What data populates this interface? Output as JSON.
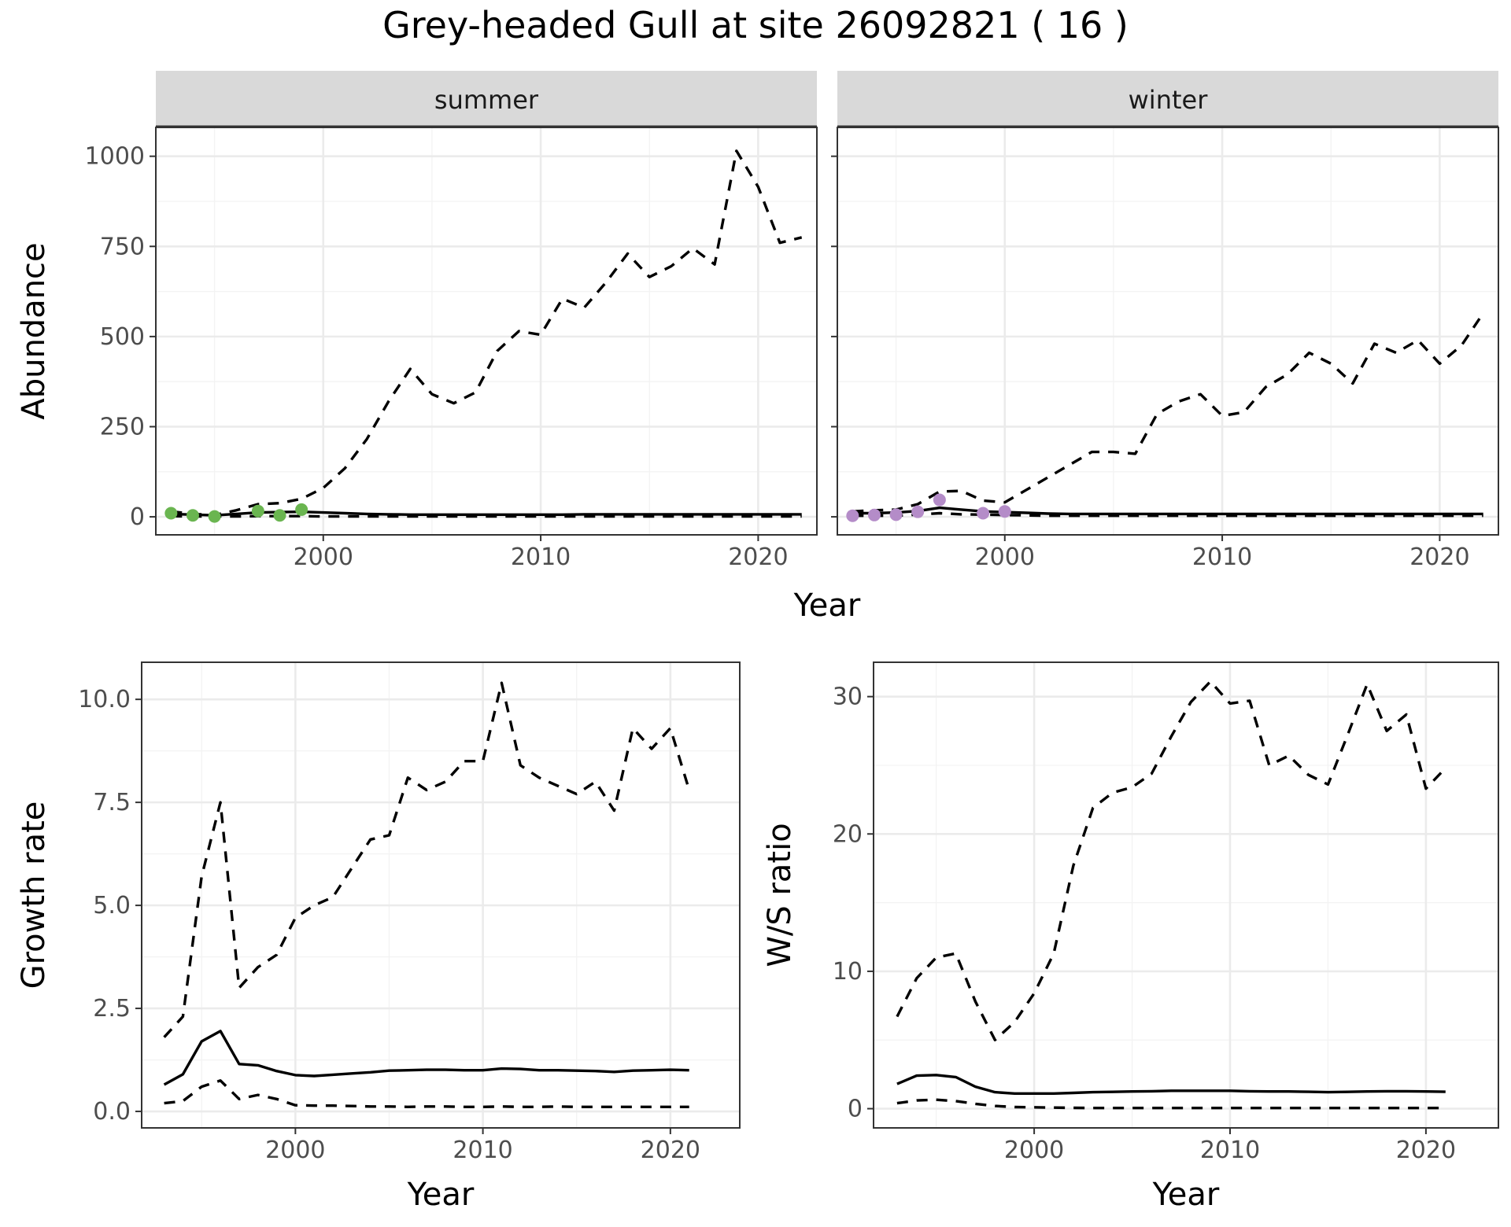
{
  "title": "Grey-headed Gull at site 26092821 ( 16 )",
  "colors": {
    "summer_points": "#6ab550",
    "winter_points": "#b48cc8",
    "strip_bg": "#d9d9d9"
  },
  "chart_data": [
    {
      "id": "abundance",
      "type": "line",
      "title": "",
      "xlabel": "Year",
      "ylabel": "Abundance",
      "xlim": [
        1992.3,
        2022.7
      ],
      "ylim": [
        -50,
        1080
      ],
      "xticks": [
        2000,
        2010,
        2020
      ],
      "xtick_labels": [
        "2000",
        "2010",
        "2020"
      ],
      "yticks": [
        0,
        250,
        500,
        750,
        1000
      ],
      "ytick_labels": [
        "0",
        "250",
        "500",
        "750",
        "1000"
      ],
      "grid": true,
      "legend": "none",
      "facets": [
        {
          "name": "summer",
          "point_color": "#6ab550",
          "points": {
            "x": [
              1993,
              1994,
              1995,
              1997,
              1998,
              1999
            ],
            "y": [
              10,
              4,
              1,
              16,
              4,
              20
            ]
          },
          "series": [
            {
              "style": "solid",
              "x": [
                1993,
                1994,
                1995,
                1996,
                1997,
                1998,
                1999,
                2000,
                2001,
                2002,
                2003,
                2004,
                2005,
                2006,
                2007,
                2008,
                2009,
                2010,
                2011,
                2012,
                2013,
                2014,
                2015,
                2016,
                2017,
                2018,
                2019,
                2020,
                2021,
                2022
              ],
              "y": [
                8,
                6,
                4,
                8,
                12,
                13,
                14,
                12,
                10,
                8,
                7,
                6,
                6,
                6,
                6,
                6,
                6,
                6,
                6,
                7,
                7,
                7,
                7,
                7,
                7,
                7,
                7,
                7,
                7,
                7
              ]
            },
            {
              "style": "dashed",
              "x": [
                1993,
                1994,
                1995,
                1996,
                1997,
                1998,
                1999,
                2000,
                2001,
                2002,
                2003,
                2004,
                2005,
                2006,
                2007,
                2008,
                2009,
                2010,
                2011,
                2012,
                2013,
                2014,
                2015,
                2016,
                2017,
                2018,
                2019,
                2020,
                2021,
                2022
              ],
              "y": [
                15,
                8,
                5,
                18,
                35,
                38,
                50,
                80,
                135,
                215,
                320,
                410,
                340,
                315,
                345,
                460,
                515,
                505,
                605,
                580,
                650,
                730,
                665,
                695,
                745,
                700,
                1015,
                915,
                760,
                775
              ]
            },
            {
              "style": "dashed",
              "x": [
                1993,
                1994,
                1995,
                1996,
                1997,
                1998,
                1999,
                2000,
                2001,
                2002,
                2003,
                2004,
                2005,
                2006,
                2007,
                2008,
                2009,
                2010,
                2011,
                2012,
                2013,
                2014,
                2015,
                2016,
                2017,
                2018,
                2019,
                2020,
                2021,
                2022
              ],
              "y": [
                2,
                1,
                1,
                1,
                2,
                2,
                2,
                1,
                1,
                1,
                1,
                1,
                1,
                1,
                1,
                1,
                1,
                1,
                1,
                1,
                1,
                1,
                1,
                1,
                1,
                1,
                1,
                1,
                1,
                1
              ]
            }
          ]
        },
        {
          "name": "winter",
          "point_color": "#b48cc8",
          "points": {
            "x": [
              1993,
              1994,
              1995,
              1996,
              1997,
              1999,
              2000
            ],
            "y": [
              3,
              5,
              6,
              14,
              47,
              10,
              15
            ]
          },
          "series": [
            {
              "style": "solid",
              "x": [
                1993,
                1994,
                1995,
                1996,
                1997,
                1998,
                1999,
                2000,
                2001,
                2002,
                2003,
                2004,
                2005,
                2006,
                2007,
                2008,
                2009,
                2010,
                2011,
                2012,
                2013,
                2014,
                2015,
                2016,
                2017,
                2018,
                2019,
                2020,
                2021,
                2022
              ],
              "y": [
                10,
                10,
                12,
                16,
                25,
                20,
                15,
                13,
                11,
                9,
                8,
                8,
                8,
                8,
                8,
                8,
                8,
                8,
                8,
                8,
                8,
                8,
                8,
                8,
                8,
                8,
                8,
                8,
                8,
                8
              ]
            },
            {
              "style": "dashed",
              "x": [
                1993,
                1994,
                1995,
                1996,
                1997,
                1998,
                1999,
                2000,
                2001,
                2002,
                2003,
                2004,
                2005,
                2006,
                2007,
                2008,
                2009,
                2010,
                2011,
                2012,
                2013,
                2014,
                2015,
                2016,
                2017,
                2018,
                2019,
                2020,
                2021,
                2022
              ],
              "y": [
                15,
                18,
                20,
                35,
                70,
                72,
                45,
                40,
                75,
                110,
                145,
                180,
                180,
                175,
                285,
                320,
                340,
                280,
                290,
                360,
                395,
                455,
                425,
                370,
                480,
                455,
                490,
                425,
                475,
                565
              ]
            },
            {
              "style": "dashed",
              "x": [
                1993,
                1994,
                1995,
                1996,
                1997,
                1998,
                1999,
                2000,
                2001,
                2002,
                2003,
                2004,
                2005,
                2006,
                2007,
                2008,
                2009,
                2010,
                2011,
                2012,
                2013,
                2014,
                2015,
                2016,
                2017,
                2018,
                2019,
                2020,
                2021,
                2022
              ],
              "y": [
                3,
                3,
                3,
                6,
                10,
                7,
                6,
                5,
                4,
                3,
                3,
                3,
                3,
                3,
                3,
                3,
                3,
                3,
                3,
                3,
                3,
                3,
                3,
                3,
                3,
                3,
                3,
                3,
                3,
                3
              ]
            }
          ]
        }
      ]
    },
    {
      "id": "growth",
      "type": "line",
      "title": "",
      "xlabel": "Year",
      "ylabel": "Growth rate",
      "xlim": [
        1991.8,
        2023.7
      ],
      "ylim": [
        -0.4,
        10.9
      ],
      "xticks": [
        2000,
        2010,
        2020
      ],
      "xtick_labels": [
        "2000",
        "2010",
        "2020"
      ],
      "yticks": [
        0,
        2.5,
        5,
        7.5,
        10
      ],
      "ytick_labels": [
        "0.0",
        "2.5",
        "5.0",
        "7.5",
        "10.0"
      ],
      "grid": true,
      "legend": "none",
      "series": [
        {
          "style": "solid",
          "x": [
            1993,
            1994,
            1995,
            1996,
            1997,
            1998,
            1999,
            2000,
            2001,
            2002,
            2003,
            2004,
            2005,
            2006,
            2007,
            2008,
            2009,
            2010,
            2011,
            2012,
            2013,
            2014,
            2015,
            2016,
            2017,
            2018,
            2019,
            2020,
            2021
          ],
          "y": [
            0.65,
            0.9,
            1.7,
            1.95,
            1.15,
            1.12,
            0.98,
            0.88,
            0.86,
            0.89,
            0.92,
            0.95,
            0.99,
            1.0,
            1.01,
            1.01,
            1.0,
            1.0,
            1.04,
            1.03,
            1.0,
            1.0,
            0.99,
            0.98,
            0.96,
            0.99,
            1.0,
            1.01,
            1.0
          ]
        },
        {
          "style": "dashed",
          "x": [
            1993,
            1994,
            1995,
            1996,
            1997,
            1998,
            1999,
            2000,
            2001,
            2002,
            2003,
            2004,
            2005,
            2006,
            2007,
            2008,
            2009,
            2010,
            2011,
            2012,
            2013,
            2014,
            2015,
            2016,
            2017,
            2018,
            2019,
            2020,
            2021
          ],
          "y": [
            1.8,
            2.3,
            5.7,
            7.5,
            3.0,
            3.5,
            3.8,
            4.7,
            5.0,
            5.2,
            5.9,
            6.6,
            6.7,
            8.1,
            7.8,
            8.0,
            8.5,
            8.5,
            10.4,
            8.4,
            8.1,
            7.9,
            7.7,
            8.0,
            7.3,
            9.3,
            8.8,
            9.3,
            7.8
          ]
        },
        {
          "style": "dashed",
          "x": [
            1993,
            1994,
            1995,
            1996,
            1997,
            1998,
            1999,
            2000,
            2001,
            2002,
            2003,
            2004,
            2005,
            2006,
            2007,
            2008,
            2009,
            2010,
            2011,
            2012,
            2013,
            2014,
            2015,
            2016,
            2017,
            2018,
            2019,
            2020,
            2021
          ],
          "y": [
            0.2,
            0.25,
            0.6,
            0.75,
            0.3,
            0.4,
            0.3,
            0.15,
            0.14,
            0.14,
            0.13,
            0.12,
            0.12,
            0.11,
            0.12,
            0.12,
            0.11,
            0.11,
            0.12,
            0.11,
            0.11,
            0.12,
            0.11,
            0.11,
            0.11,
            0.11,
            0.11,
            0.11,
            0.11
          ]
        }
      ]
    },
    {
      "id": "ws_ratio",
      "type": "line",
      "title": "",
      "xlabel": "Year",
      "ylabel": "W/S ratio",
      "xlim": [
        1991.8,
        2023.7
      ],
      "ylim": [
        -1.4,
        32.5
      ],
      "xticks": [
        2000,
        2010,
        2020
      ],
      "xtick_labels": [
        "2000",
        "2010",
        "2020"
      ],
      "yticks": [
        0,
        10,
        20,
        30
      ],
      "ytick_labels": [
        "0",
        "10",
        "20",
        "30"
      ],
      "grid": true,
      "legend": "none",
      "series": [
        {
          "style": "solid",
          "x": [
            1993,
            1994,
            1995,
            1996,
            1997,
            1998,
            1999,
            2000,
            2001,
            2002,
            2003,
            2004,
            2005,
            2006,
            2007,
            2008,
            2009,
            2010,
            2011,
            2012,
            2013,
            2014,
            2015,
            2016,
            2017,
            2018,
            2019,
            2020,
            2021
          ],
          "y": [
            1.8,
            2.4,
            2.45,
            2.3,
            1.6,
            1.2,
            1.1,
            1.1,
            1.1,
            1.15,
            1.2,
            1.22,
            1.25,
            1.27,
            1.3,
            1.3,
            1.3,
            1.3,
            1.27,
            1.25,
            1.25,
            1.23,
            1.2,
            1.22,
            1.25,
            1.27,
            1.27,
            1.25,
            1.23
          ]
        },
        {
          "style": "dashed",
          "x": [
            1993,
            1994,
            1995,
            1996,
            1997,
            1998,
            1999,
            2000,
            2001,
            2002,
            2003,
            2004,
            2005,
            2006,
            2007,
            2008,
            2009,
            2010,
            2011,
            2012,
            2013,
            2014,
            2015,
            2016,
            2017,
            2018,
            2019,
            2020,
            2021
          ],
          "y": [
            6.7,
            9.5,
            11.0,
            11.3,
            7.8,
            5.0,
            6.3,
            8.4,
            11.3,
            17.7,
            21.9,
            23.0,
            23.4,
            24.4,
            27.1,
            29.6,
            31.1,
            29.5,
            29.7,
            25.0,
            25.7,
            24.3,
            23.6,
            27.2,
            30.9,
            27.5,
            28.7,
            23.3,
            24.8
          ]
        },
        {
          "style": "dashed",
          "x": [
            1993,
            1994,
            1995,
            1996,
            1997,
            1998,
            1999,
            2000,
            2001,
            2002,
            2003,
            2004,
            2005,
            2006,
            2007,
            2008,
            2009,
            2010,
            2011,
            2012,
            2013,
            2014,
            2015,
            2016,
            2017,
            2018,
            2019,
            2020,
            2021
          ],
          "y": [
            0.4,
            0.6,
            0.65,
            0.55,
            0.35,
            0.2,
            0.12,
            0.1,
            0.08,
            0.06,
            0.05,
            0.05,
            0.05,
            0.05,
            0.05,
            0.05,
            0.05,
            0.05,
            0.05,
            0.05,
            0.05,
            0.05,
            0.05,
            0.05,
            0.05,
            0.05,
            0.05,
            0.05,
            0.05
          ]
        }
      ]
    }
  ]
}
